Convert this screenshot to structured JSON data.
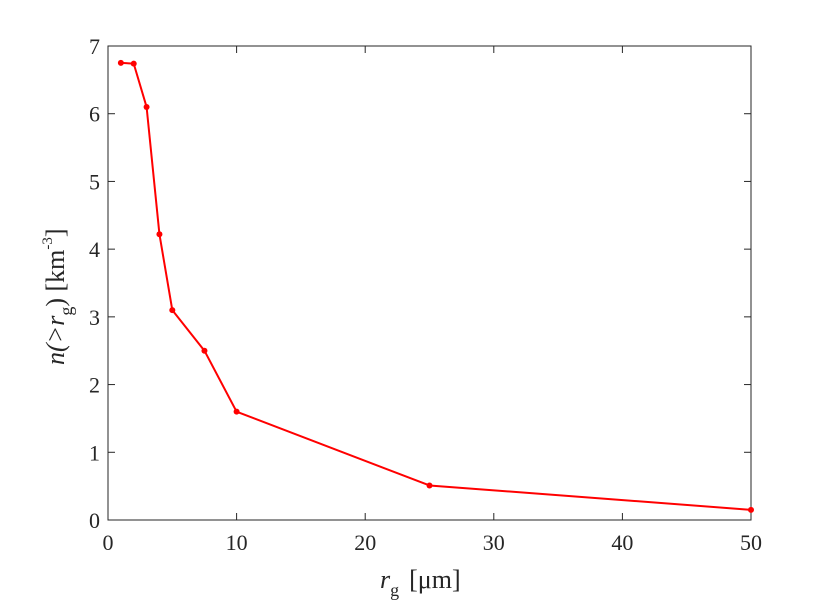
{
  "chart_data": {
    "type": "line",
    "title": "",
    "xlabel": {
      "symbol": "r",
      "subscript": "g",
      "unit": "[μm]"
    },
    "ylabel": {
      "prefix": "n(>",
      "symbol": "r",
      "subscript": "g",
      "suffix": ") [km",
      "superscript": "-3",
      "close": "]"
    },
    "xlim": [
      0,
      50
    ],
    "ylim": [
      0,
      7
    ],
    "xticks": [
      0,
      10,
      20,
      30,
      40,
      50
    ],
    "yticks": [
      0,
      1,
      2,
      3,
      4,
      5,
      6,
      7
    ],
    "grid": false,
    "series": [
      {
        "color": "#ff0000",
        "marker": "dot",
        "x": [
          1,
          2,
          3,
          4,
          5,
          7.5,
          10,
          25,
          50
        ],
        "y": [
          6.75,
          6.74,
          6.1,
          4.22,
          3.1,
          2.5,
          1.6,
          0.51,
          0.15
        ]
      }
    ]
  }
}
